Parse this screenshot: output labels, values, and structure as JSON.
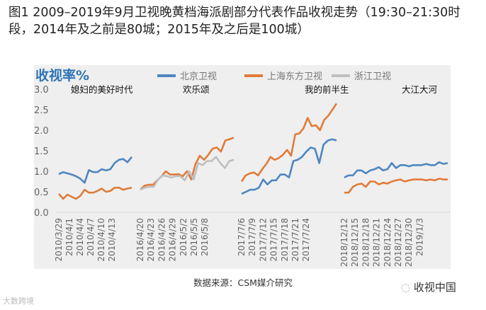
{
  "title": "图1 2009–2019年9月卫视晚黄档海派剧部分代表作品收视走势（19:30–21:30时段，2014年及之前是80城；2015年及之后是100城）",
  "source": "数据来源：CSM媒介研究",
  "watermark_left": "大数跨境",
  "watermark_right": "收视中国",
  "chart_data": {
    "type": "line",
    "ylabel": "收视率%",
    "ylim": [
      0,
      3
    ],
    "yticks": [
      "0.0",
      "0.5",
      "1.0",
      "1.5",
      "2.0",
      "2.5",
      "3.0"
    ],
    "legend": [
      {
        "name": "北京卫视",
        "color": "#4f86c0"
      },
      {
        "name": "上海东方卫视",
        "color": "#e07b39"
      },
      {
        "name": "浙江卫视",
        "color": "#bfbfbf"
      }
    ],
    "legend_position": "top",
    "segments": [
      {
        "label": "媳妇的美好时代",
        "ticks": [
          "2010/3/29",
          "2010/4/1",
          "2010/4/4",
          "2010/4/7",
          "2010/4/10",
          "2010/4/13"
        ],
        "series": {
          "北京卫视": [
            0.93,
            0.98,
            0.95,
            0.92,
            0.88,
            0.82,
            0.72,
            1.03,
            0.98,
            0.98,
            1.05,
            1.02,
            1.05,
            1.2,
            1.28,
            1.3,
            1.22,
            1.35
          ],
          "上海东方卫视": [
            0.45,
            0.33,
            0.43,
            0.38,
            0.33,
            0.4,
            0.55,
            0.48,
            0.48,
            0.52,
            0.58,
            0.5,
            0.52,
            0.6,
            0.6,
            0.55,
            0.58,
            0.6
          ]
        }
      },
      {
        "label": "欢乐颂",
        "ticks": [
          "2016/4/20",
          "2016/4/23",
          "2016/4/26",
          "2016/4/29",
          "2016/5/2",
          "2016/5/5",
          "2016/5/8"
        ],
        "series": {
          "上海东方卫视": [
            0.55,
            0.65,
            0.67,
            0.67,
            0.78,
            0.88,
            1.0,
            0.92,
            0.92,
            0.93,
            0.88,
            1.0,
            0.8,
            1.18,
            1.38,
            1.28,
            1.4,
            1.55,
            1.58,
            1.48,
            1.75,
            1.78,
            1.82
          ],
          "浙江卫视": [
            0.55,
            0.6,
            0.62,
            0.62,
            0.8,
            0.9,
            0.88,
            0.85,
            0.88,
            0.88,
            0.78,
            1.0,
            0.8,
            1.2,
            1.15,
            1.25,
            1.25,
            1.35,
            1.2,
            1.08,
            1.25,
            1.28
          ]
        }
      },
      {
        "label": "我的前半生",
        "ticks": [
          "2017/7/6",
          "2017/7/9",
          "2017/7/12",
          "2017/7/15",
          "2017/7/18",
          "2017/7/21",
          "2017/7/24"
        ],
        "series": {
          "上海东方卫视": [
            0.75,
            0.9,
            0.95,
            0.97,
            0.9,
            1.05,
            1.18,
            1.35,
            1.28,
            1.32,
            1.4,
            1.52,
            1.38,
            1.9,
            1.92,
            2.05,
            2.3,
            2.1,
            2.12,
            2.0,
            2.25,
            2.35,
            2.5,
            2.65
          ],
          "北京卫视": [
            0.45,
            0.5,
            0.55,
            0.55,
            0.6,
            0.8,
            0.68,
            0.78,
            0.78,
            0.92,
            0.92,
            0.85,
            1.25,
            1.28,
            1.35,
            1.48,
            1.58,
            1.55,
            1.2,
            1.65,
            1.75,
            1.78,
            1.75
          ]
        }
      },
      {
        "label": "大江大河",
        "ticks": [
          "2018/12/12",
          "2018/12/15",
          "2018/12/18",
          "2018/12/21",
          "2018/12/24",
          "2018/12/27",
          "2018/12/30",
          "2019/1/3"
        ],
        "series": {
          "北京卫视": [
            0.85,
            0.9,
            0.9,
            1.02,
            1.02,
            0.95,
            1.02,
            1.05,
            1.1,
            1.02,
            1.05,
            1.2,
            1.08,
            1.15,
            1.15,
            1.12,
            1.15,
            1.15,
            1.15,
            1.18,
            1.15,
            1.15,
            1.22,
            1.18,
            1.2
          ],
          "上海东方卫视": [
            0.48,
            0.48,
            0.62,
            0.68,
            0.7,
            0.62,
            0.75,
            0.75,
            0.68,
            0.72,
            0.7,
            0.75,
            0.78,
            0.8,
            0.75,
            0.78,
            0.8,
            0.8,
            0.8,
            0.78,
            0.8,
            0.78,
            0.82,
            0.8,
            0.8
          ]
        }
      }
    ]
  }
}
